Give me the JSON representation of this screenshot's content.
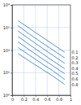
{
  "chart_data": {
    "type": "line",
    "log": "y",
    "grid": true,
    "xlim": [
      0,
      1
    ],
    "xticks": [
      0,
      0.2,
      0.4,
      0.6,
      0.8,
      1
    ],
    "ylim": [
      1,
      10000
    ],
    "yticks": [
      {
        "value": 1,
        "label": "10⁰"
      },
      {
        "value": 10,
        "label": "10¹"
      },
      {
        "value": 100,
        "label": "10²"
      },
      {
        "value": 1000,
        "label": "10³"
      },
      {
        "value": 10000,
        "label": "10⁴"
      }
    ],
    "x": [
      0.1,
      0.3,
      0.5,
      0.7,
      0.9
    ],
    "series": [
      {
        "name": "0.1",
        "color": "#2f78c4",
        "values": [
          2000,
          900,
          400,
          180,
          80
        ]
      },
      {
        "name": "0.2",
        "color": "#2f78c4",
        "values": [
          1200,
          500,
          220,
          100,
          45
        ]
      },
      {
        "name": "0.3",
        "color": "#2f78c4",
        "values": [
          700,
          300,
          130,
          58,
          26
        ]
      },
      {
        "name": "0.4",
        "color": "#2f78c4",
        "values": [
          400,
          170,
          75,
          33,
          15
        ]
      },
      {
        "name": "0.5",
        "color": "#2f78c4",
        "values": [
          230,
          100,
          44,
          20,
          9
        ]
      },
      {
        "name": "0.6",
        "color": "#2f78c4",
        "values": [
          130,
          58,
          26,
          12,
          5
        ]
      },
      {
        "name": "0.8",
        "color": "#2f78c4",
        "values": [
          70,
          32,
          15,
          7,
          3
        ]
      }
    ]
  }
}
